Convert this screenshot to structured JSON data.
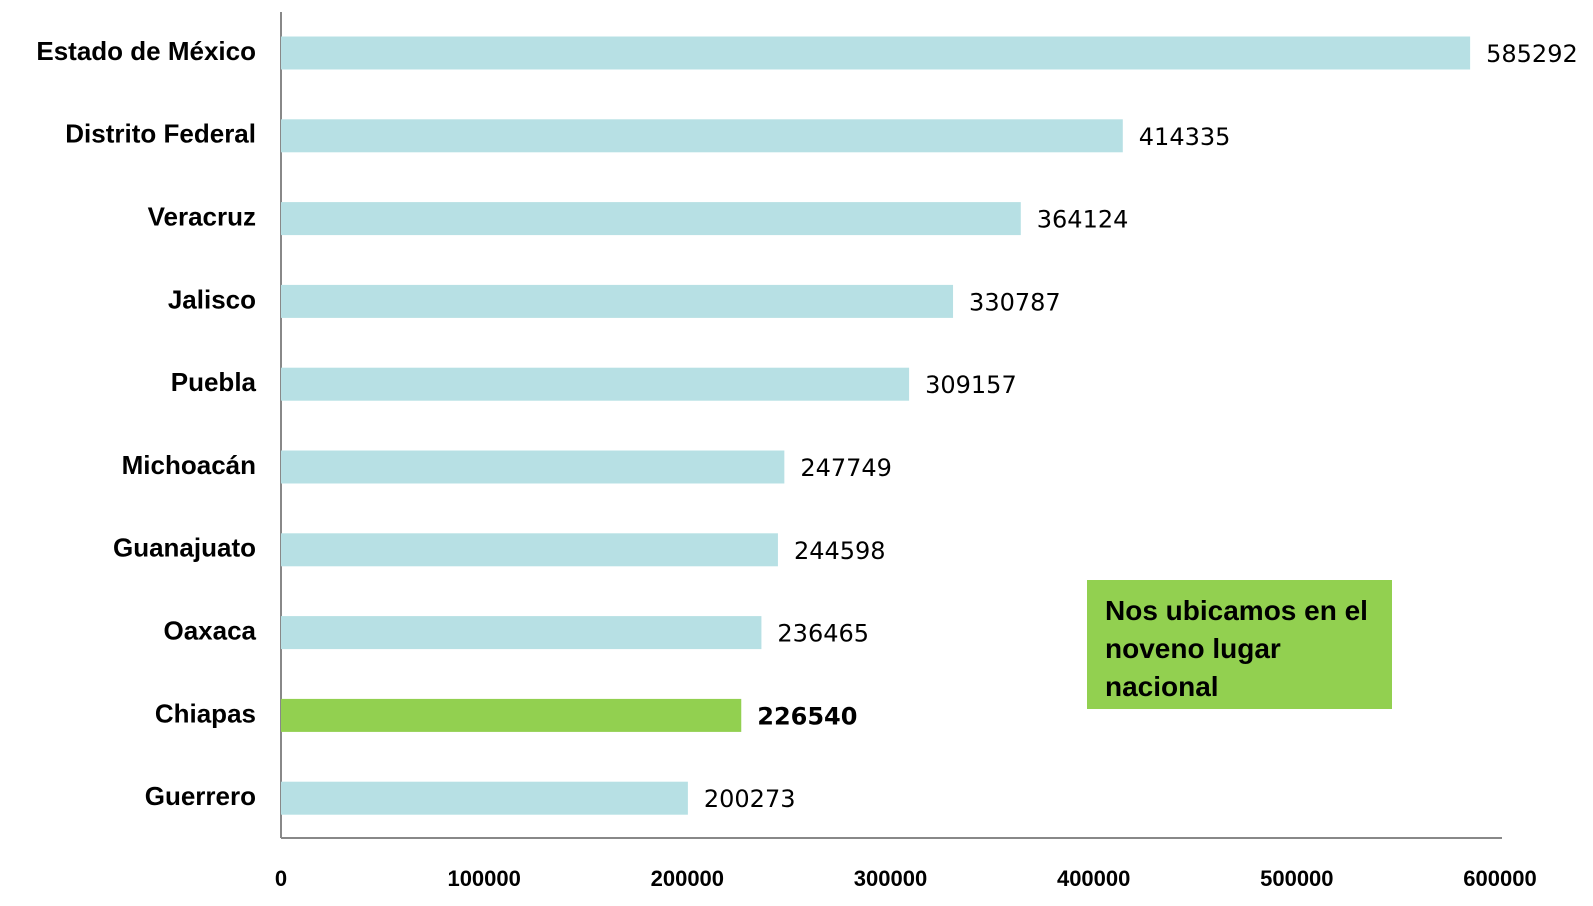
{
  "chart_data": {
    "type": "barh",
    "categories": [
      "Estado de México",
      "Distrito Federal",
      "Veracruz",
      "Jalisco",
      "Puebla",
      "Michoacán",
      "Guanajuato",
      "Oaxaca",
      "Chiapas",
      "Guerrero"
    ],
    "values": [
      585292,
      414335,
      364124,
      330787,
      309157,
      247749,
      244598,
      236465,
      226540,
      200273
    ],
    "colors": [
      "#b7e0e4",
      "#b7e0e4",
      "#b7e0e4",
      "#b7e0e4",
      "#b7e0e4",
      "#b7e0e4",
      "#b7e0e4",
      "#b7e0e4",
      "#92d050",
      "#b7e0e4"
    ],
    "bold_value_labels": [
      8
    ],
    "xlim": [
      0,
      600000
    ],
    "xticks": [
      0,
      100000,
      200000,
      300000,
      400000,
      500000,
      600000
    ],
    "annotation": {
      "text": "Nos ubicamos en el noveno lugar nacional",
      "color": "#92d050"
    }
  }
}
